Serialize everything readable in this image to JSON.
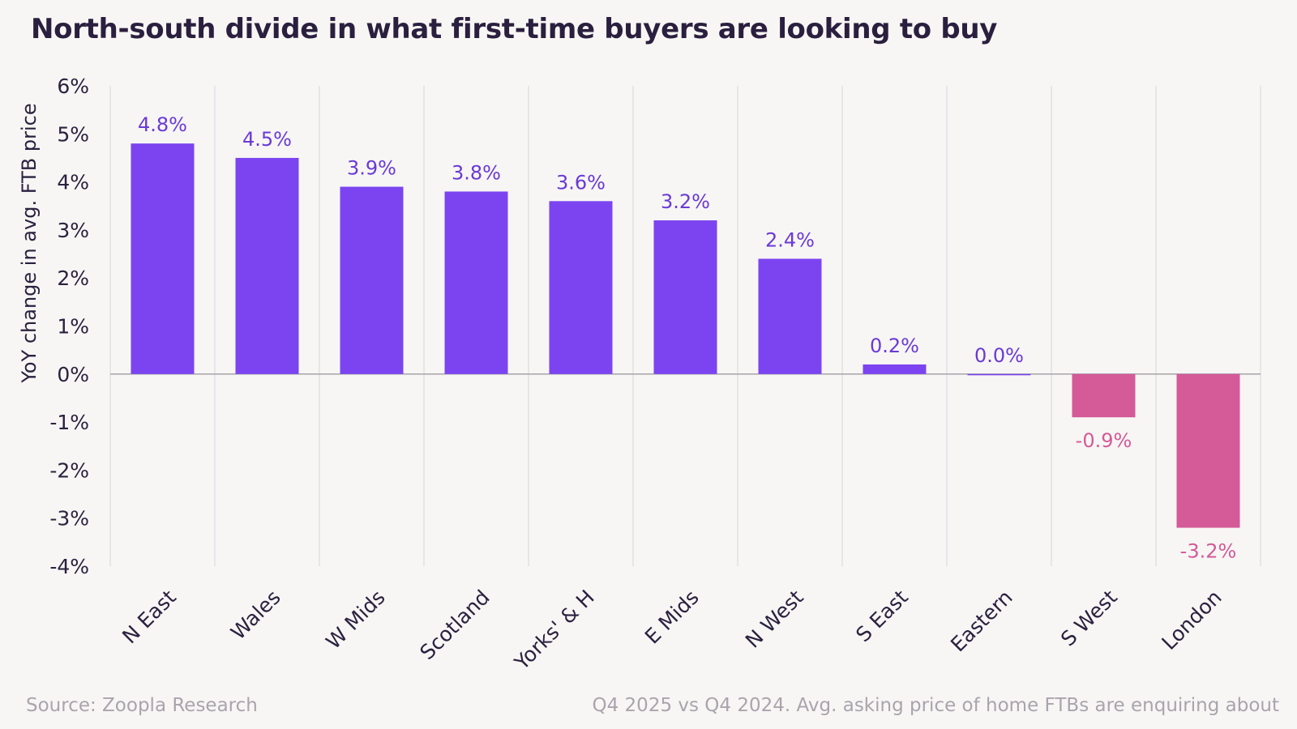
{
  "title": "North-south divide in what first-time buyers are looking to buy",
  "footer": {
    "source": "Source: Zoopla Research",
    "note": "Q4 2025 vs Q4 2024. Avg. asking price of home FTBs are enquiring about"
  },
  "colors": {
    "positive": "#7b44f0",
    "positive_label": "#6a3ad6",
    "negative": "#d45a98",
    "negative_label": "#d45a98",
    "grid": "#e2dfe3",
    "zero_line": "#a8a4ab",
    "text": "#2a2140"
  },
  "chart_data": {
    "type": "bar",
    "title": "North-south divide in what first-time buyers are looking to buy",
    "ylabel": "YoY change in avg. FTB price",
    "xlabel": "",
    "categories": [
      "N East",
      "Wales",
      "W Mids",
      "Scotland",
      "Yorks' & H",
      "E Mids",
      "N West",
      "S East",
      "Eastern",
      "S West",
      "London"
    ],
    "values": [
      4.8,
      4.5,
      3.9,
      3.8,
      3.6,
      3.2,
      2.4,
      0.2,
      0.0,
      -0.9,
      -3.2
    ],
    "data_labels": [
      "4.8%",
      "4.5%",
      "3.9%",
      "3.8%",
      "3.6%",
      "3.2%",
      "2.4%",
      "0.2%",
      "0.0%",
      "-0.9%",
      "-3.2%"
    ],
    "ylim": [
      -4,
      6
    ],
    "yticks": [
      6,
      5,
      4,
      3,
      2,
      1,
      0,
      -1,
      -2,
      -3,
      -4
    ],
    "ytick_labels": [
      "6%",
      "5%",
      "4%",
      "3%",
      "2%",
      "1%",
      "0%",
      "-1%",
      "-2%",
      "-3%",
      "-4%"
    ],
    "grid": "vertical",
    "legend": "none"
  }
}
